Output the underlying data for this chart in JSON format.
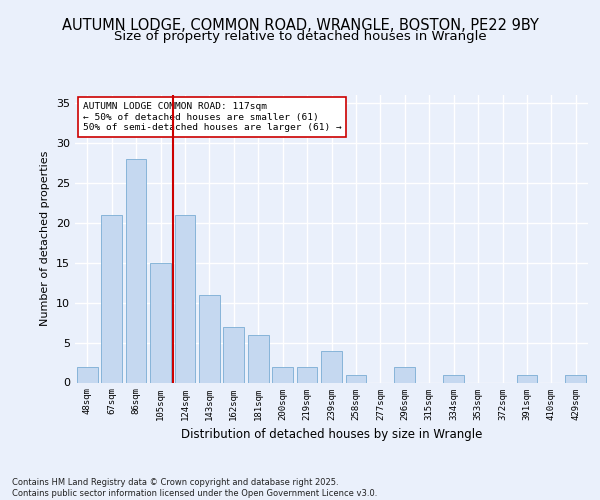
{
  "title1": "AUTUMN LODGE, COMMON ROAD, WRANGLE, BOSTON, PE22 9BY",
  "title2": "Size of property relative to detached houses in Wrangle",
  "xlabel": "Distribution of detached houses by size in Wrangle",
  "ylabel": "Number of detached properties",
  "categories": [
    "48sqm",
    "67sqm",
    "86sqm",
    "105sqm",
    "124sqm",
    "143sqm",
    "162sqm",
    "181sqm",
    "200sqm",
    "219sqm",
    "239sqm",
    "258sqm",
    "277sqm",
    "296sqm",
    "315sqm",
    "334sqm",
    "353sqm",
    "372sqm",
    "391sqm",
    "410sqm",
    "429sqm"
  ],
  "values": [
    2,
    21,
    28,
    15,
    21,
    11,
    7,
    6,
    2,
    2,
    4,
    1,
    0,
    2,
    0,
    1,
    0,
    0,
    1,
    0,
    1
  ],
  "bar_color": "#c5d8f0",
  "bar_edge_color": "#7aadd4",
  "vline_x": 3.5,
  "vline_color": "#cc0000",
  "annotation_text": "AUTUMN LODGE COMMON ROAD: 117sqm\n← 50% of detached houses are smaller (61)\n50% of semi-detached houses are larger (61) →",
  "annotation_box_color": "#ffffff",
  "annotation_box_edge": "#cc0000",
  "ylim": [
    0,
    36
  ],
  "yticks": [
    0,
    5,
    10,
    15,
    20,
    25,
    30,
    35
  ],
  "footnote": "Contains HM Land Registry data © Crown copyright and database right 2025.\nContains public sector information licensed under the Open Government Licence v3.0.",
  "bg_color": "#eaf0fb",
  "plot_bg_color": "#eaf0fb",
  "grid_color": "#ffffff",
  "title1_fontsize": 10.5,
  "title2_fontsize": 9.5
}
